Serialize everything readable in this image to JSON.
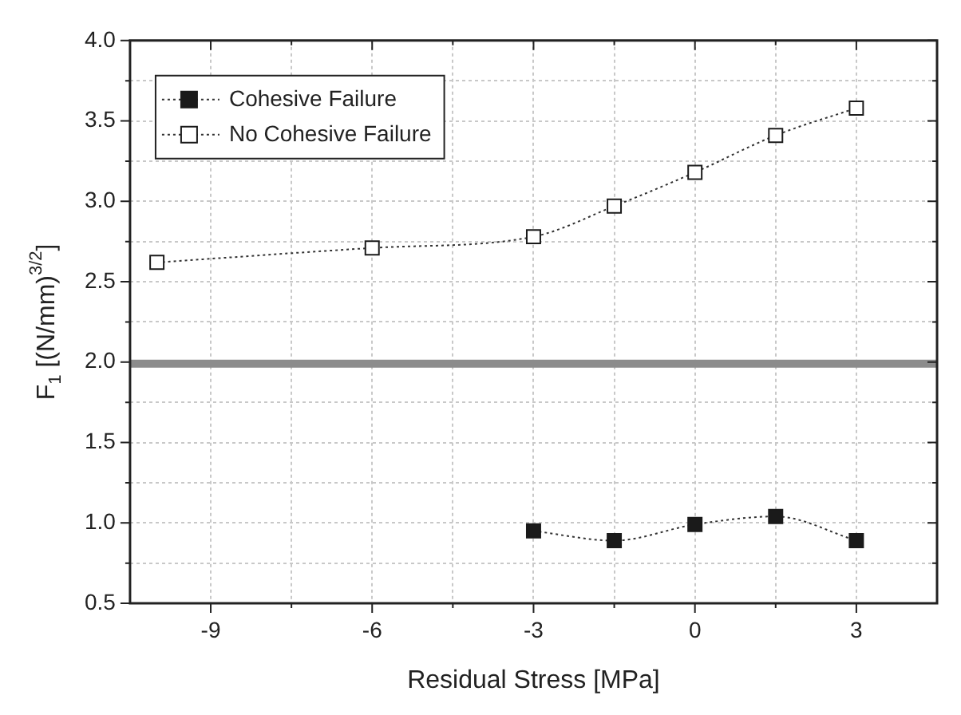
{
  "chart_data": {
    "type": "line",
    "xlabel": "Residual Stress [MPa]",
    "ylabel": "F$_{1}$ [(N/mm)$^{3/2}$]",
    "xlim": [
      -10.5,
      4.5
    ],
    "xticks": [
      -9,
      {
        "value": -7.5,
        "label": null
      },
      -6,
      {
        "value": -4.5,
        "label": null
      },
      -3,
      {
        "value": -1.5,
        "label": null
      },
      0,
      {
        "value": 1.5,
        "label": null
      },
      3
    ],
    "ylim": [
      0.5,
      4.0
    ],
    "yticks": [
      0.5,
      {
        "value": 0.75,
        "label": null
      },
      "1.0",
      {
        "value": 1.25,
        "label": null
      },
      1.5,
      {
        "value": 1.75,
        "label": null
      },
      "2.0",
      {
        "value": 2.25,
        "label": null
      },
      2.5,
      {
        "value": 2.75,
        "label": null
      },
      "3.0",
      {
        "value": 3.25,
        "label": null
      },
      3.5,
      {
        "value": 3.75,
        "label": null
      },
      "4.0"
    ],
    "series": [
      {
        "name": "Cohesive Failure",
        "color": "#1a1a1a",
        "x": [
          -3,
          -1.5,
          0,
          1.5,
          3
        ],
        "values": [
          0.95,
          0.89,
          0.99,
          1.04,
          0.89
        ]
      },
      {
        "name": "No Cohesive Failure",
        "color": "#ffffff",
        "x": [
          -10,
          -6,
          -3,
          -1.5,
          0,
          1.5,
          3
        ],
        "values": [
          2.62,
          2.71,
          2.78,
          2.97,
          3.18,
          3.41,
          3.58
        ]
      }
    ],
    "ref_lines": [
      {
        "axis": "y",
        "value": 1.99,
        "color": "#8c8c8c"
      }
    ],
    "grid": true,
    "legend": "top left",
    "marker": "square",
    "line_style": "dotted"
  }
}
